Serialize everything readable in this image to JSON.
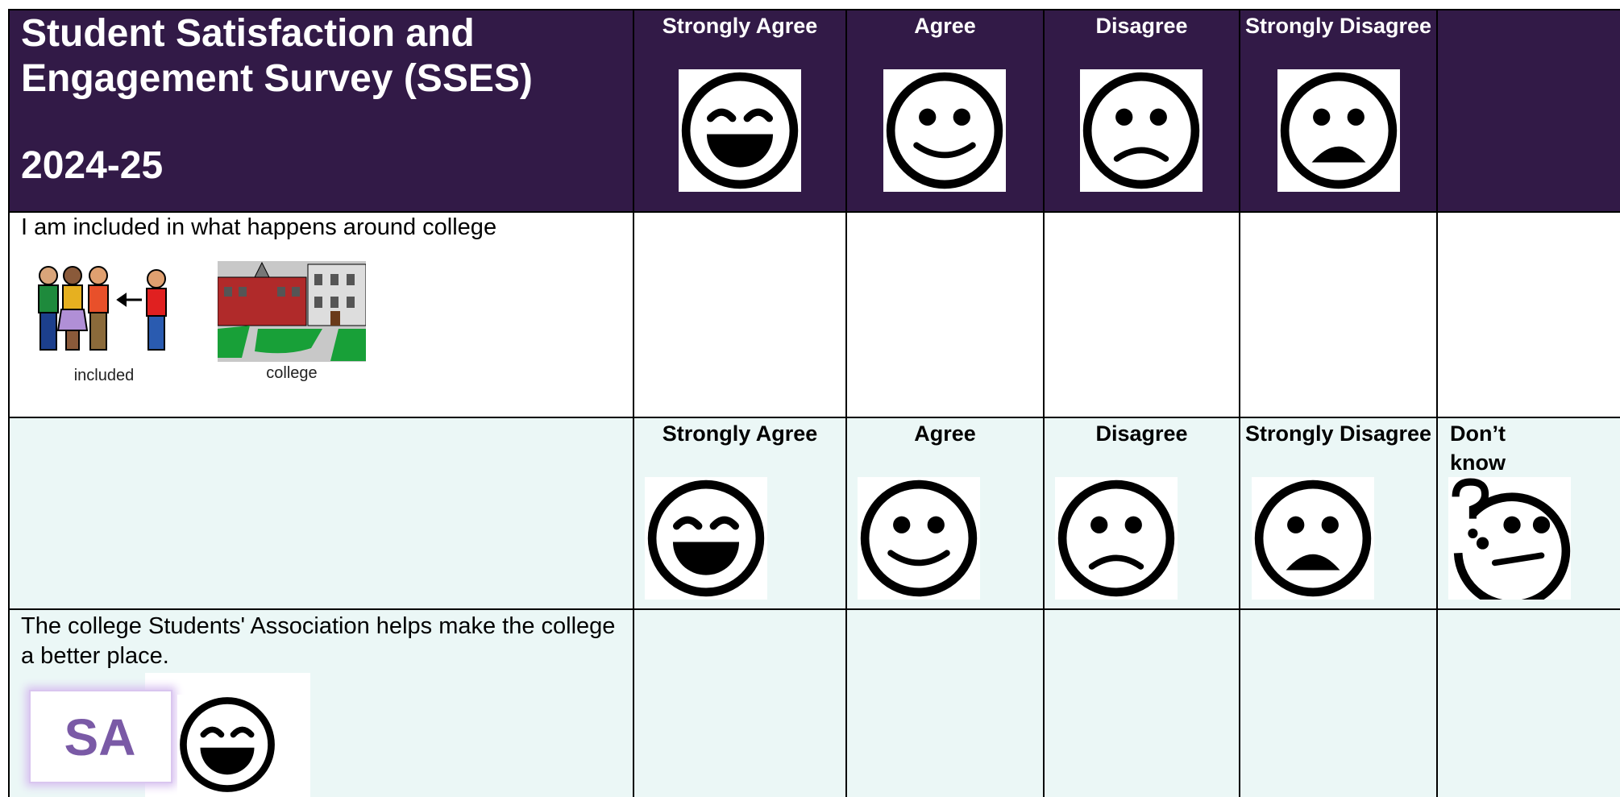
{
  "header": {
    "title": "Student Satisfaction and Engagement Survey (SSES)",
    "year": "2024-25",
    "options": [
      "Strongly Agree",
      "Agree",
      "Disagree",
      "Strongly Disagree"
    ]
  },
  "rows": [
    {
      "question": "I am included in what happens around college",
      "symbols": [
        "included",
        "college"
      ]
    },
    {
      "options": [
        "Strongly Agree",
        "Agree",
        "Disagree",
        "Strongly Disagree",
        "Don’t know"
      ]
    },
    {
      "question": "The college Students' Association helps make the college a better place.",
      "logo": "SA"
    }
  ]
}
